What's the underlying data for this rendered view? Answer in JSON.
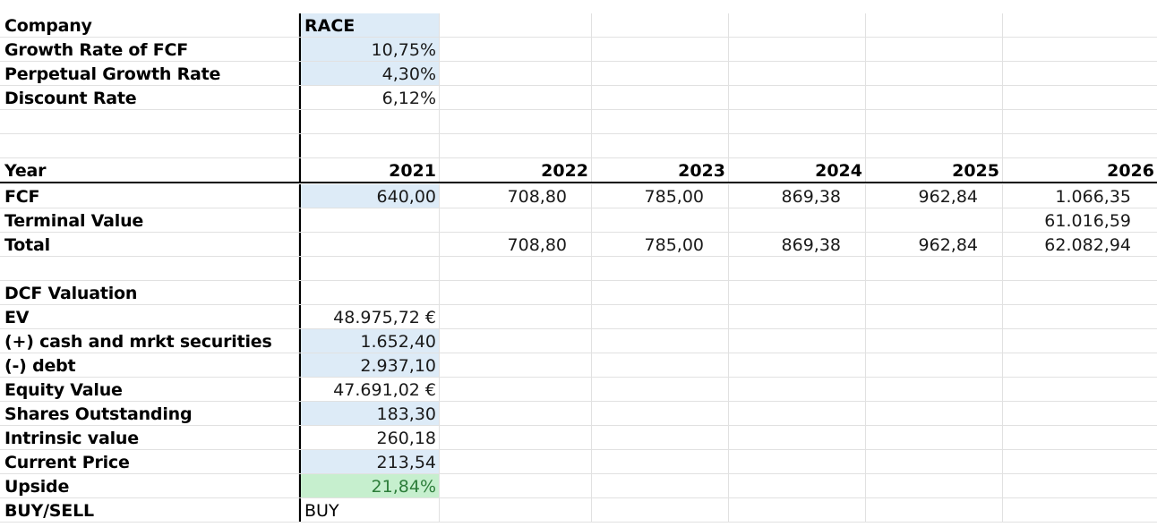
{
  "params": {
    "company_label": "Company",
    "company_value": "RACE",
    "growth_label": "Growth Rate of FCF",
    "growth_value": "10,75%",
    "perp_label": "Perpetual Growth Rate",
    "perp_value": "4,30%",
    "discount_label": "Discount Rate",
    "discount_value": "6,12%"
  },
  "projection": {
    "year_label": "Year",
    "years": [
      "2021",
      "2022",
      "2023",
      "2024",
      "2025",
      "2026"
    ],
    "fcf_label": "FCF",
    "fcf": [
      "640,00",
      "708,80",
      "785,00",
      "869,38",
      "962,84",
      "1.066,35"
    ],
    "tv_label": "Terminal Value",
    "tv": [
      "",
      "",
      "",
      "",
      "",
      "61.016,59"
    ],
    "total_label": "Total",
    "total": [
      "",
      "708,80",
      "785,00",
      "869,38",
      "962,84",
      "62.082,94"
    ]
  },
  "valuation": {
    "title": "DCF Valuation",
    "ev_label": "EV",
    "ev_value": "48.975,72 €",
    "cash_label": "(+) cash and mrkt securities",
    "cash_value": "1.652,40",
    "debt_label": "(-) debt",
    "debt_value": "2.937,10",
    "equity_label": "Equity Value",
    "equity_value": "47.691,02 €",
    "shares_label": "Shares Outstanding",
    "shares_value": "183,30",
    "intrinsic_label": "Intrinsic value",
    "intrinsic_value": "260,18",
    "price_label": "Current Price",
    "price_value": "213,54",
    "upside_label": "Upside",
    "upside_value": "21,84%",
    "signal_label": "BUY/SELL",
    "signal_value": "BUY"
  },
  "colors": {
    "input_fill": "#ddebf7",
    "upside_fill": "#c6efce",
    "upside_text": "#2d7d3a",
    "gridline": "#e1e1e1"
  }
}
